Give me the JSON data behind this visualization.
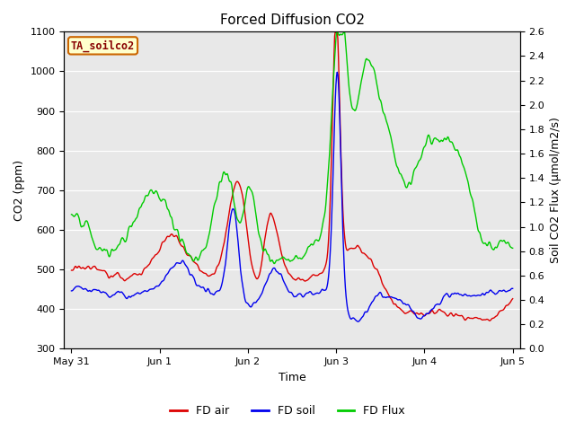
{
  "title": "Forced Diffusion CO2",
  "xlabel": "Time",
  "ylabel_left": "CO2 (ppm)",
  "ylabel_right": "Soil CO2 Flux (μmol/m2/s)",
  "ylim_left": [
    300,
    1100
  ],
  "ylim_right": [
    0.0,
    2.6
  ],
  "yticks_left": [
    300,
    400,
    500,
    600,
    700,
    800,
    900,
    1000,
    1100
  ],
  "yticks_right": [
    0.0,
    0.2,
    0.4,
    0.6,
    0.8,
    1.0,
    1.2,
    1.4,
    1.6,
    1.8,
    2.0,
    2.2,
    2.4,
    2.6
  ],
  "xtick_labels": [
    "May 31",
    "Jun 1",
    "Jun 2",
    "Jun 3",
    "Jun 4",
    "Jun 5"
  ],
  "label_box_text": "TA_soilco2",
  "legend_entries": [
    "FD air",
    "FD soil",
    "FD Flux"
  ],
  "line_colors": [
    "#dd0000",
    "#0000ee",
    "#00cc00"
  ],
  "fig_bg_color": "#ffffff",
  "plot_bg_color": "#e8e8e8",
  "title_fontsize": 11,
  "axis_label_fontsize": 9,
  "tick_fontsize": 8,
  "legend_fontsize": 9
}
